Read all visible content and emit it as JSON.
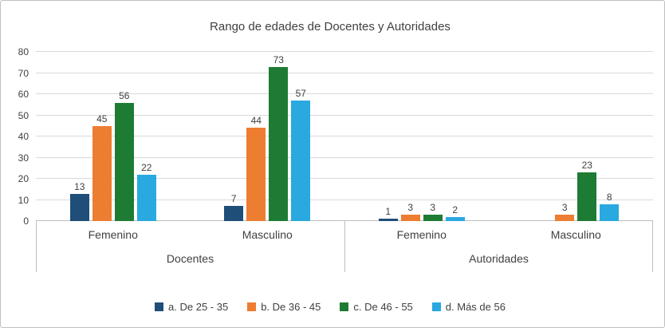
{
  "chart_data": {
    "type": "bar",
    "title": "Rango de edades de Docentes y Autoridades",
    "group_labels": [
      "Docentes",
      "Autoridades"
    ],
    "categories": [
      "Femenino",
      "Masculino",
      "Femenino",
      "Masculino"
    ],
    "series": [
      {
        "name": "a. De 25 - 35",
        "color": "#1f4e79",
        "values": [
          13,
          7,
          1,
          0
        ]
      },
      {
        "name": "b. De 36 - 45",
        "color": "#ed7d31",
        "values": [
          45,
          44,
          3,
          3
        ]
      },
      {
        "name": "c. De 46 - 55",
        "color": "#1e7b34",
        "values": [
          56,
          73,
          3,
          23
        ]
      },
      {
        "name": "d. Más de 56",
        "color": "#29a9e0",
        "values": [
          22,
          57,
          2,
          8
        ]
      }
    ],
    "ylim": [
      0,
      80
    ],
    "yticks": [
      0,
      10,
      20,
      30,
      40,
      50,
      60,
      70,
      80
    ],
    "grid": true,
    "legend_position": "bottom",
    "colors": {
      "text": "#404040",
      "gridline": "#d9d9d9",
      "axis_line": "#bfbfbf",
      "border": "#bfbfbf",
      "background": "#ffffff"
    }
  }
}
